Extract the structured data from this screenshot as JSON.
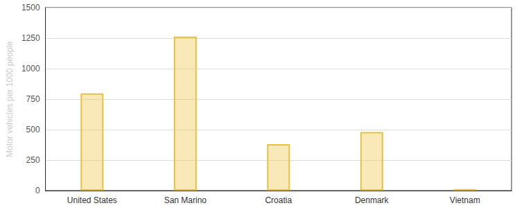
{
  "chart_data": {
    "type": "bar",
    "y_label": "Motor vehicles per 1000 people",
    "categories": [
      "United States",
      "San Marino",
      "Croatia",
      "Denmark",
      "Vietnam"
    ],
    "values": [
      797,
      1263,
      380,
      480,
      13
    ],
    "color": "#e8c040",
    "ylim": [
      0,
      1500
    ],
    "yticks": [
      0,
      250,
      500,
      750,
      1000,
      1250,
      1500
    ],
    "grid": true
  }
}
